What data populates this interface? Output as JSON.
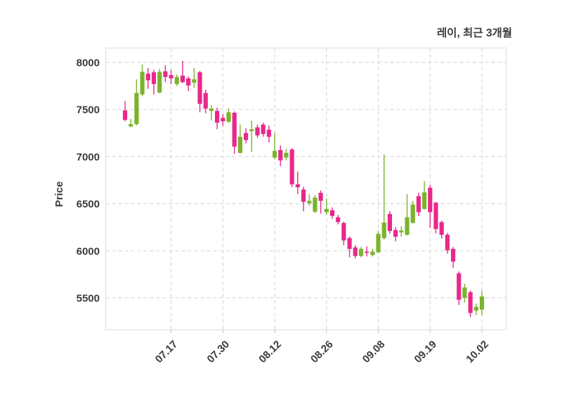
{
  "title": "레이, 최근 3개월",
  "y_axis": {
    "label": "Price",
    "tick_labels": [
      "8000",
      "7500",
      "7000",
      "6500",
      "6000",
      "5500"
    ]
  },
  "x_axis": {
    "tick_labels": [
      "07.17",
      "07.30",
      "08.12",
      "08.26",
      "09.08",
      "09.19",
      "10.02"
    ]
  },
  "colors": {
    "up": "#7cb32e",
    "down": "#e7298a",
    "grid": "#d8d8d8",
    "plot_border": "#e6e6e6",
    "text": "#3b3b3b",
    "background": "#ffffff"
  },
  "chart_data": {
    "type": "candlestick",
    "title": "레이, 최근 3개월",
    "xlabel": "",
    "ylabel": "Price",
    "ylim": [
      5160,
      8155
    ],
    "y_ticks": [
      8000,
      7500,
      7000,
      6500,
      6000,
      5500
    ],
    "grid": "dashed",
    "legend_position": "none",
    "x_tick_labels": [
      "07.17",
      "07.30",
      "08.12",
      "08.26",
      "09.08",
      "09.19",
      "10.02"
    ],
    "x_tick_candle_indices": [
      8,
      17,
      26,
      35,
      44,
      53,
      62
    ],
    "candles_ohlc": [
      [
        7490,
        7590,
        7375,
        7390
      ],
      [
        7320,
        7400,
        7310,
        7345
      ],
      [
        7345,
        7820,
        7330,
        7675
      ],
      [
        7660,
        7975,
        7640,
        7900
      ],
      [
        7880,
        7940,
        7720,
        7810
      ],
      [
        7895,
        7920,
        7660,
        7770
      ],
      [
        7680,
        7930,
        7670,
        7900
      ],
      [
        7905,
        7970,
        7790,
        7845
      ],
      [
        7865,
        7920,
        7770,
        7830
      ],
      [
        7770,
        7870,
        7750,
        7845
      ],
      [
        7860,
        8015,
        7780,
        7790
      ],
      [
        7830,
        7850,
        7695,
        7755
      ],
      [
        7785,
        7940,
        7730,
        7820
      ],
      [
        7895,
        7910,
        7470,
        7560
      ],
      [
        7675,
        7710,
        7460,
        7510
      ],
      [
        7485,
        7545,
        7385,
        7510
      ],
      [
        7485,
        7520,
        7290,
        7360
      ],
      [
        7410,
        7450,
        7325,
        7375
      ],
      [
        7370,
        7510,
        7360,
        7470
      ],
      [
        7465,
        7480,
        7030,
        7105
      ],
      [
        7040,
        7340,
        7030,
        7210
      ],
      [
        7250,
        7300,
        7140,
        7175
      ],
      [
        7270,
        7380,
        7050,
        7290
      ],
      [
        7310,
        7340,
        7200,
        7225
      ],
      [
        7340,
        7360,
        7210,
        7240
      ],
      [
        7285,
        7330,
        7150,
        7210
      ],
      [
        6990,
        7250,
        6970,
        7060
      ],
      [
        7070,
        7120,
        6900,
        6960
      ],
      [
        6990,
        7080,
        6960,
        7040
      ],
      [
        7075,
        7090,
        6675,
        6705
      ],
      [
        6705,
        6840,
        6600,
        6675
      ],
      [
        6650,
        6680,
        6420,
        6520
      ],
      [
        6505,
        6600,
        6480,
        6530
      ],
      [
        6415,
        6590,
        6400,
        6565
      ],
      [
        6615,
        6640,
        6395,
        6530
      ],
      [
        6410,
        6555,
        6380,
        6445
      ],
      [
        6430,
        6460,
        6340,
        6370
      ],
      [
        6355,
        6380,
        6280,
        6305
      ],
      [
        6295,
        6310,
        6060,
        6110
      ],
      [
        6135,
        6150,
        5930,
        6020
      ],
      [
        6035,
        6060,
        5920,
        5945
      ],
      [
        5945,
        6040,
        5930,
        6020
      ],
      [
        5990,
        6045,
        5940,
        5980
      ],
      [
        5955,
        6020,
        5940,
        5990
      ],
      [
        5985,
        6210,
        5975,
        6180
      ],
      [
        6135,
        7020,
        6120,
        6300
      ],
      [
        6390,
        6420,
        6180,
        6210
      ],
      [
        6220,
        6250,
        6100,
        6150
      ],
      [
        6195,
        6260,
        6150,
        6215
      ],
      [
        6170,
        6600,
        6160,
        6355
      ],
      [
        6295,
        6530,
        6290,
        6490
      ],
      [
        6580,
        6615,
        6370,
        6410
      ],
      [
        6445,
        6740,
        6435,
        6620
      ],
      [
        6670,
        6700,
        6245,
        6410
      ],
      [
        6510,
        6520,
        6185,
        6230
      ],
      [
        6305,
        6320,
        6130,
        6170
      ],
      [
        6170,
        6190,
        5970,
        6005
      ],
      [
        6020,
        6040,
        5820,
        5885
      ],
      [
        5760,
        5780,
        5425,
        5480
      ],
      [
        5500,
        5650,
        5450,
        5610
      ],
      [
        5560,
        5580,
        5300,
        5340
      ],
      [
        5365,
        5440,
        5315,
        5405
      ],
      [
        5375,
        5575,
        5315,
        5515
      ]
    ]
  }
}
